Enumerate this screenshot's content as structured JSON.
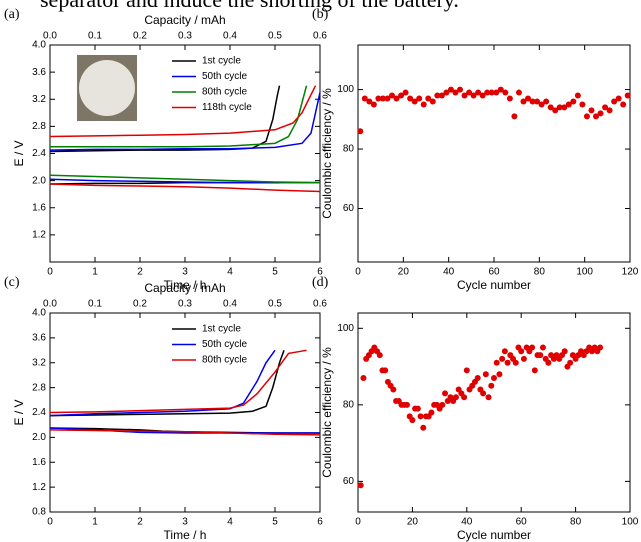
{
  "caption_fragment": "separator and induce the shorting of the battery.",
  "chart_data": [
    {
      "type": "line",
      "label": "(a)",
      "x_label": "Time / h",
      "x2_label": "Capacity / mAh",
      "y_label": "E / V",
      "xlim": [
        0,
        6
      ],
      "xticks": [
        0,
        1,
        2,
        3,
        4,
        5,
        6
      ],
      "x2lim": [
        0,
        0.6
      ],
      "x2ticks": [
        {
          "value": 0,
          "label": "0.0"
        },
        0.1,
        0.2,
        0.3,
        0.4,
        0.5,
        0.6
      ],
      "ylim": [
        0.8,
        4.0
      ],
      "yticks": [
        1.2,
        1.6,
        {
          "value": 2,
          "label": "2.0"
        },
        2.4,
        2.8,
        3.2,
        3.6,
        {
          "value": 4,
          "label": "4.0"
        }
      ],
      "legend": "upper right",
      "series": [
        {
          "name": "1st cycle",
          "color": "#000000",
          "x": [
            0,
            1,
            2,
            3,
            4,
            5.1,
            null,
            0,
            1,
            2,
            3,
            4,
            4.5,
            4.8,
            4.95,
            5.05,
            5.1
          ],
          "values": [
            1.95,
            1.96,
            1.96,
            1.97,
            1.97,
            1.97,
            null,
            2.43,
            2.44,
            2.45,
            2.45,
            2.46,
            2.48,
            2.58,
            2.9,
            3.25,
            3.4
          ]
        },
        {
          "name": "50th cycle",
          "color": "#0000ee",
          "x": [
            0,
            1,
            2,
            3,
            4,
            5,
            6,
            null,
            0,
            1,
            2,
            3,
            4,
            5,
            5.6,
            5.8,
            5.9,
            6
          ],
          "values": [
            2.02,
            2.0,
            1.99,
            1.98,
            1.97,
            1.97,
            1.97,
            null,
            2.45,
            2.46,
            2.46,
            2.47,
            2.47,
            2.49,
            2.55,
            2.7,
            3.0,
            3.3
          ]
        },
        {
          "name": "80th cycle",
          "color": "#008000",
          "x": [
            0,
            1,
            2,
            3,
            4,
            5,
            6,
            null,
            0,
            1,
            2,
            3,
            4,
            5,
            5.3,
            5.5,
            5.6,
            5.7
          ],
          "values": [
            2.08,
            2.06,
            2.04,
            2.02,
            2.0,
            1.98,
            1.97,
            null,
            2.5,
            2.5,
            2.5,
            2.5,
            2.51,
            2.55,
            2.65,
            2.9,
            3.15,
            3.4
          ]
        },
        {
          "name": "118th cycle",
          "color": "#e00000",
          "x": [
            0,
            1,
            2,
            3,
            4,
            5,
            6,
            null,
            0,
            1,
            2,
            3,
            4,
            5,
            5.4,
            5.6,
            5.75,
            5.9
          ],
          "values": [
            1.95,
            1.93,
            1.92,
            1.91,
            1.89,
            1.86,
            1.84,
            null,
            2.65,
            2.66,
            2.67,
            2.68,
            2.7,
            2.75,
            2.85,
            3.0,
            3.2,
            3.4
          ]
        }
      ]
    },
    {
      "type": "scatter",
      "label": "(b)",
      "x_label": "Cycle number",
      "y_label": "Coulombic efficiency / %",
      "xlim": [
        0,
        120
      ],
      "xticks": [
        0,
        20,
        40,
        60,
        80,
        100,
        120
      ],
      "ylim": [
        42,
        115
      ],
      "yticks": [
        60,
        80,
        100
      ],
      "color": "#e00000",
      "x": [
        1,
        3,
        5,
        7,
        9,
        11,
        13,
        15,
        17,
        19,
        21,
        23,
        25,
        27,
        29,
        31,
        33,
        35,
        37,
        39,
        41,
        43,
        45,
        47,
        49,
        51,
        53,
        55,
        57,
        59,
        61,
        63,
        65,
        67,
        69,
        71,
        73,
        75,
        77,
        79,
        81,
        83,
        85,
        87,
        89,
        91,
        93,
        95,
        97,
        99,
        101,
        103,
        105,
        107,
        109,
        111,
        113,
        115,
        117,
        119
      ],
      "values": [
        86,
        97,
        96,
        95,
        97,
        97,
        97,
        98,
        97,
        98,
        99,
        97,
        96,
        97,
        95,
        97,
        96,
        98,
        98,
        99,
        100,
        99,
        100,
        98,
        99,
        98,
        99,
        98,
        99,
        99,
        99,
        100,
        99,
        97,
        91,
        99,
        96,
        97,
        96,
        96,
        95,
        96,
        94,
        93,
        94,
        94,
        95,
        96,
        98,
        95,
        91,
        93,
        91,
        92,
        94,
        93,
        96,
        97,
        95,
        98
      ]
    },
    {
      "type": "line",
      "label": "(c)",
      "x_label": "Time / h",
      "x2_label": "Capacity / mAh",
      "y_label": "E / V",
      "xlim": [
        0,
        6
      ],
      "xticks": [
        0,
        1,
        2,
        3,
        4,
        5,
        6
      ],
      "x2lim": [
        0,
        0.6
      ],
      "x2ticks": [
        {
          "value": 0,
          "label": "0.0"
        },
        0.1,
        0.2,
        0.3,
        0.4,
        0.5,
        0.6
      ],
      "ylim": [
        0.8,
        4.0
      ],
      "yticks": [
        0.8,
        1.2,
        1.6,
        {
          "value": 2,
          "label": "2.0"
        },
        2.4,
        2.8,
        3.2,
        3.6,
        {
          "value": 4,
          "label": "4.0"
        }
      ],
      "legend": "upper right",
      "series": [
        {
          "name": "1st cycle",
          "color": "#000000",
          "x": [
            0,
            1,
            2,
            2.5,
            3,
            4,
            5,
            6,
            null,
            0,
            1,
            2,
            3,
            4,
            4.5,
            4.8,
            4.95,
            5.1,
            5.2
          ],
          "values": [
            2.15,
            2.14,
            2.12,
            2.1,
            2.09,
            2.08,
            2.07,
            2.07,
            null,
            2.35,
            2.36,
            2.37,
            2.38,
            2.39,
            2.42,
            2.5,
            2.8,
            3.2,
            3.4
          ]
        },
        {
          "name": "50th cycle",
          "color": "#0000ee",
          "x": [
            0,
            1,
            2,
            3,
            4,
            5,
            6,
            null,
            0,
            1,
            2,
            3,
            4,
            4.3,
            4.6,
            4.8,
            5.0
          ],
          "values": [
            2.15,
            2.12,
            2.08,
            2.07,
            2.07,
            2.07,
            2.07,
            null,
            2.35,
            2.38,
            2.4,
            2.42,
            2.46,
            2.55,
            2.9,
            3.2,
            3.4
          ]
        },
        {
          "name": "80th cycle",
          "color": "#e00000",
          "x": [
            0,
            1,
            2,
            3,
            4,
            5,
            6,
            null,
            0,
            1,
            2,
            3,
            4,
            4.3,
            4.6,
            5.0,
            5.3,
            5.7
          ],
          "values": [
            2.12,
            2.11,
            2.1,
            2.09,
            2.07,
            2.05,
            2.04,
            null,
            2.4,
            2.41,
            2.43,
            2.45,
            2.47,
            2.52,
            2.7,
            3.05,
            3.35,
            3.4
          ]
        }
      ]
    },
    {
      "type": "scatter",
      "label": "(d)",
      "x_label": "Cycle number",
      "y_label": "Coulombic efficiency / %",
      "xlim": [
        0,
        100
      ],
      "xticks": [
        0,
        20,
        40,
        60,
        80,
        100
      ],
      "ylim": [
        52,
        104
      ],
      "yticks": [
        60,
        80,
        100
      ],
      "color": "#e00000",
      "x": [
        1,
        2,
        3,
        4,
        5,
        6,
        7,
        8,
        9,
        10,
        11,
        12,
        13,
        14,
        15,
        16,
        17,
        18,
        19,
        20,
        21,
        22,
        23,
        24,
        25,
        26,
        27,
        28,
        29,
        30,
        31,
        32,
        33,
        34,
        35,
        36,
        37,
        38,
        39,
        40,
        41,
        42,
        43,
        44,
        45,
        46,
        47,
        48,
        49,
        50,
        51,
        52,
        53,
        54,
        55,
        56,
        57,
        58,
        59,
        60,
        61,
        62,
        63,
        64,
        65,
        66,
        67,
        68,
        69,
        70,
        71,
        72,
        73,
        74,
        75,
        76,
        77,
        78,
        79,
        80,
        81,
        82,
        83,
        84,
        85,
        86,
        87,
        88,
        89
      ],
      "values": [
        59,
        87,
        92,
        93,
        94,
        95,
        94,
        93,
        89,
        89,
        86,
        85,
        84,
        81,
        81,
        80,
        80,
        80,
        77,
        76,
        79,
        79,
        77,
        74,
        77,
        77,
        78,
        80,
        80,
        79,
        80,
        83,
        81,
        82,
        81,
        82,
        84,
        83,
        82,
        89,
        84,
        85,
        86,
        87,
        84,
        83,
        88,
        82,
        85,
        87,
        91,
        88,
        92,
        94,
        91,
        93,
        92,
        91,
        95,
        94,
        92,
        95,
        94,
        95,
        89,
        93,
        93,
        95,
        92,
        91,
        93,
        92,
        93,
        92,
        93,
        94,
        90,
        91,
        93,
        92,
        93,
        94,
        93,
        94,
        95,
        94,
        95,
        94,
        95
      ]
    }
  ]
}
